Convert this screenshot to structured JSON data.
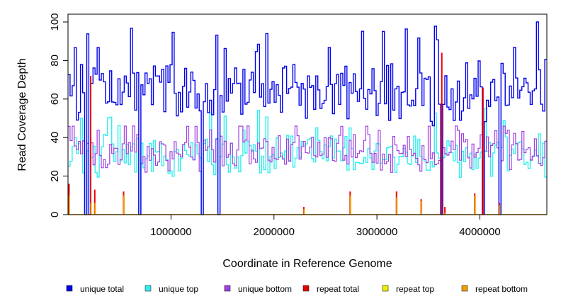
{
  "chart_data": {
    "type": "line",
    "title": "",
    "xlabel": "Coordinate in Reference Genome",
    "ylabel": "Read Coverage Depth",
    "xlim": [
      0,
      4650000
    ],
    "ylim": [
      0,
      100
    ],
    "x_ticks": [
      1000000,
      2000000,
      3000000,
      4000000
    ],
    "x_tick_labels": [
      "1000000",
      "2000000",
      "3000000",
      "4000000"
    ],
    "y_ticks": [
      0,
      20,
      40,
      60,
      80,
      100
    ],
    "y_tick_labels": [
      "0",
      "20",
      "40",
      "60",
      "80",
      "100"
    ],
    "bin_count": 230,
    "series": [
      {
        "name": "unique total",
        "color": "#0000ee",
        "mean": 63,
        "amplitude": 12,
        "peak_max": 100
      },
      {
        "name": "unique top",
        "color": "#33eeee",
        "mean": 31,
        "amplitude": 8,
        "peak_max": 55
      },
      {
        "name": "unique bottom",
        "color": "#a040e0",
        "mean": 33,
        "amplitude": 8,
        "peak_max": 46
      },
      {
        "name": "repeat total",
        "color": "#ee0000",
        "mean": 0,
        "amplitude": 0,
        "peak_max": 84
      },
      {
        "name": "repeat top",
        "color": "#eeee00",
        "mean": 0,
        "amplitude": 0,
        "peak_max": 10
      },
      {
        "name": "repeat bottom",
        "color": "#f0a000",
        "mean": 0,
        "amplitude": 0,
        "peak_max": 10
      }
    ],
    "coverage_dropouts": [
      170000,
      210000,
      700000,
      1300000,
      1470000,
      3630000,
      4040000,
      4190000
    ],
    "repeat_regions": [
      {
        "x": 10000,
        "repeat_total": 16,
        "repeat_bottom": 10
      },
      {
        "x": 220000,
        "repeat_total": 72,
        "repeat_bottom": 6
      },
      {
        "x": 260000,
        "repeat_total": 13,
        "repeat_bottom": 6
      },
      {
        "x": 540000,
        "repeat_total": 12,
        "repeat_bottom": 10
      },
      {
        "x": 2290000,
        "repeat_total": 4,
        "repeat_bottom": 3
      },
      {
        "x": 2740000,
        "repeat_total": 12,
        "repeat_bottom": 10
      },
      {
        "x": 3190000,
        "repeat_total": 12,
        "repeat_bottom": 9
      },
      {
        "x": 3430000,
        "repeat_total": 8,
        "repeat_bottom": 7
      },
      {
        "x": 3630000,
        "repeat_total": 84,
        "repeat_bottom": 0
      },
      {
        "x": 3660000,
        "repeat_total": 4,
        "repeat_bottom": 1
      },
      {
        "x": 3950000,
        "repeat_total": 11,
        "repeat_bottom": 10
      },
      {
        "x": 4030000,
        "repeat_total": 66,
        "repeat_bottom": 0
      },
      {
        "x": 4190000,
        "repeat_total": 6,
        "repeat_bottom": 5
      }
    ],
    "legend_position": "bottom"
  }
}
